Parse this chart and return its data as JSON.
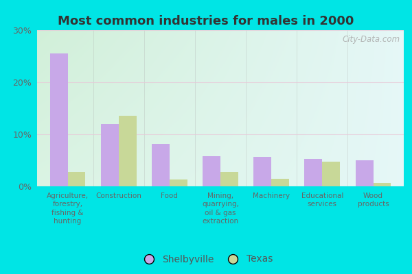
{
  "title": "Most common industries for males in 2000",
  "categories": [
    "Agriculture,\nforestry,\nfishing &\nhunting",
    "Construction",
    "Food",
    "Mining,\nquarrying,\noil & gas\nextraction",
    "Machinery",
    "Educational\nservices",
    "Wood\nproducts"
  ],
  "shelbyville": [
    25.5,
    12.0,
    8.2,
    5.8,
    5.7,
    5.3,
    5.0
  ],
  "texas": [
    2.8,
    13.5,
    1.3,
    2.8,
    1.5,
    4.8,
    0.7
  ],
  "shelbyville_color": "#c8a8e8",
  "texas_color": "#c8d898",
  "background_outer": "#00e5e5",
  "ylim": [
    0,
    30
  ],
  "yticks": [
    0,
    10,
    20,
    30
  ],
  "ytick_labels": [
    "0%",
    "10%",
    "20%",
    "30%"
  ],
  "bar_width": 0.35,
  "legend_labels": [
    "Shelbyville",
    "Texas"
  ],
  "watermark": "City-Data.com"
}
